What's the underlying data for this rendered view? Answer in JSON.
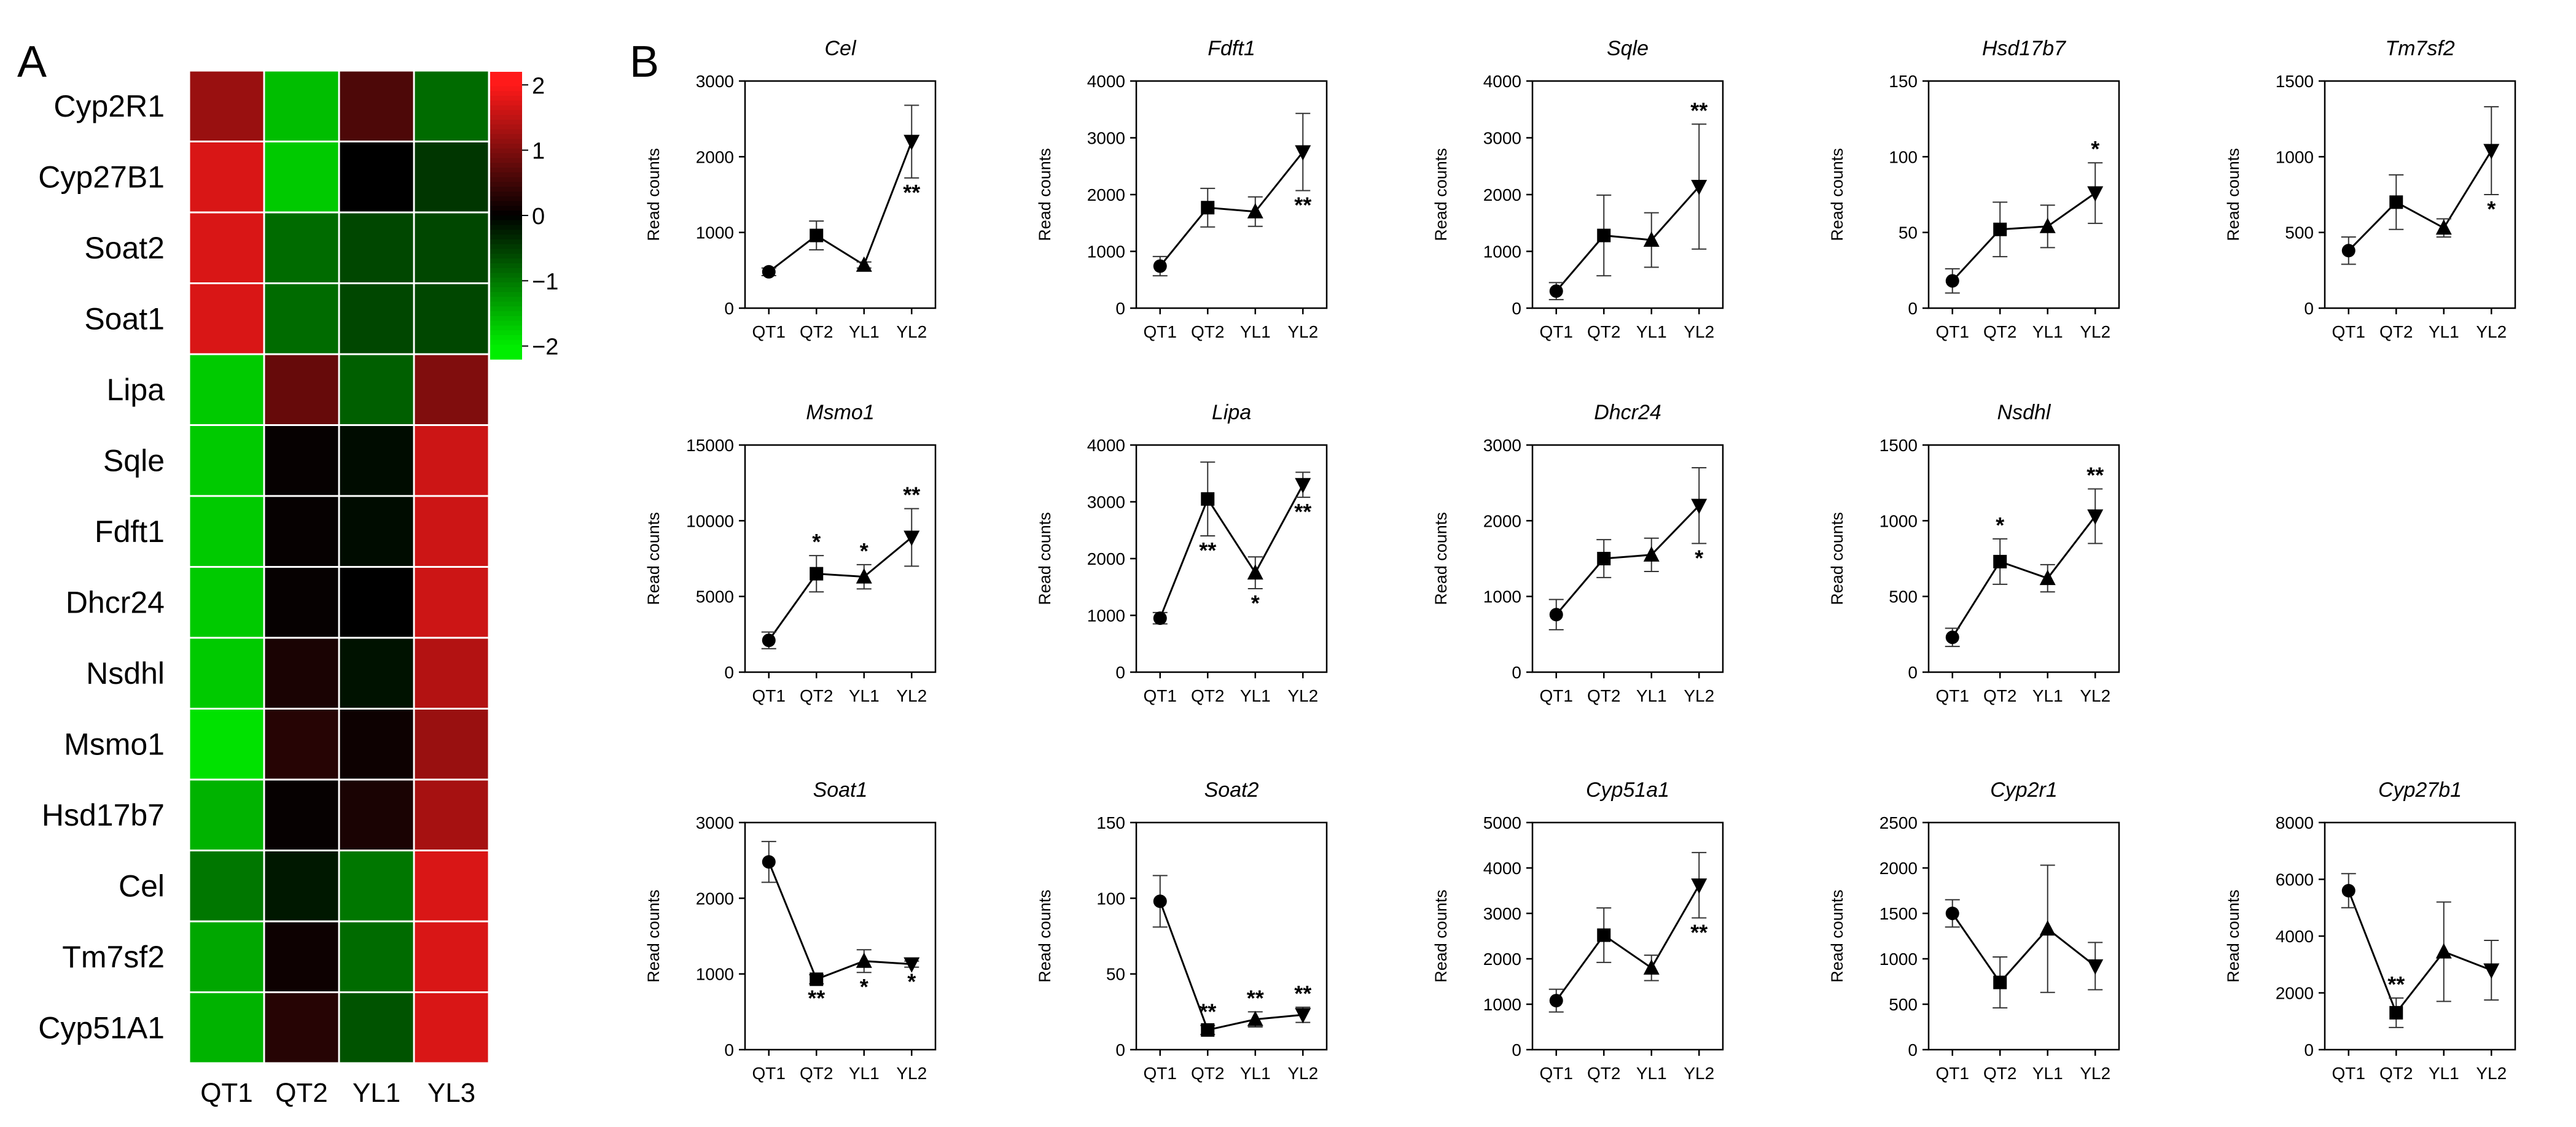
{
  "panels": {
    "a_label": "A",
    "b_label": "B"
  },
  "colors": {
    "high": "#ff1a1a",
    "mid": "#000000",
    "low": "#00ee00",
    "line": "#000000"
  },
  "chart_data": [
    {
      "type": "heatmap",
      "panel": "A",
      "rows": [
        "Cyp2R1",
        "Cyp27B1",
        "Soat2",
        "Soat1",
        "Lipa",
        "Sqle",
        "Fdft1",
        "Dhcr24",
        "Nsdhl",
        "Msmo1",
        "Hsd17b7",
        "Cel",
        "Tm7sf2",
        "Cyp51A1"
      ],
      "columns": [
        "QT1",
        "QT2",
        "YL1",
        "YL3"
      ],
      "values": [
        [
          1.2,
          -1.6,
          0.6,
          -0.9
        ],
        [
          1.7,
          -1.7,
          0.0,
          -0.45
        ],
        [
          1.7,
          -0.9,
          -0.6,
          -0.6
        ],
        [
          1.7,
          -0.9,
          -0.6,
          -0.6
        ],
        [
          -1.7,
          0.8,
          -0.8,
          1.0
        ],
        [
          -1.7,
          0.05,
          -0.1,
          1.6
        ],
        [
          -1.7,
          0.05,
          -0.1,
          1.6
        ],
        [
          -1.7,
          0.05,
          0.0,
          1.6
        ],
        [
          -1.7,
          0.2,
          -0.15,
          1.4
        ],
        [
          -1.9,
          0.3,
          0.1,
          1.2
        ],
        [
          -1.5,
          0.05,
          0.2,
          1.3
        ],
        [
          -1.0,
          -0.2,
          -1.0,
          1.7
        ],
        [
          -1.4,
          0.1,
          -0.9,
          1.7
        ],
        [
          -1.5,
          0.3,
          -0.7,
          1.7
        ]
      ],
      "colorbar": {
        "ticks": [
          "2",
          "1",
          "0",
          "−1",
          "−2"
        ],
        "values": [
          2,
          1,
          0,
          -1,
          -2
        ],
        "range": [
          -2.2,
          2.2
        ]
      }
    },
    {
      "type": "line",
      "panel": "B",
      "title": "Cel",
      "categories": [
        "QT1",
        "QT2",
        "YL1",
        "YL2"
      ],
      "values": [
        480,
        960,
        570,
        2200
      ],
      "errors": [
        50,
        190,
        40,
        480
      ],
      "annotations": [
        "",
        "",
        "",
        "**"
      ],
      "annotation_pos": [
        "",
        "",
        "",
        "below"
      ],
      "ylim": [
        0,
        3000
      ],
      "yticks": [
        "0",
        "1000",
        "2000",
        "3000"
      ],
      "ylabel": "Read counts",
      "markers": [
        "circle",
        "square",
        "triangle-up",
        "triangle-down"
      ]
    },
    {
      "type": "line",
      "panel": "B",
      "title": "Fdft1",
      "categories": [
        "QT1",
        "QT2",
        "YL1",
        "YL2"
      ],
      "values": [
        740,
        1770,
        1700,
        2750
      ],
      "errors": [
        170,
        340,
        260,
        680
      ],
      "annotations": [
        "",
        "",
        "",
        "**"
      ],
      "annotation_pos": [
        "",
        "",
        "",
        "below"
      ],
      "ylim": [
        0,
        4000
      ],
      "yticks": [
        "0",
        "1000",
        "2000",
        "3000",
        "4000"
      ],
      "ylabel": "Read counts",
      "markers": [
        "circle",
        "square",
        "triangle-up",
        "triangle-down"
      ]
    },
    {
      "type": "line",
      "panel": "B",
      "title": "Sqle",
      "categories": [
        "QT1",
        "QT2",
        "YL1",
        "YL2"
      ],
      "values": [
        300,
        1280,
        1200,
        2140
      ],
      "errors": [
        150,
        710,
        480,
        1100
      ],
      "annotations": [
        "",
        "",
        "",
        "**"
      ],
      "annotation_pos": [
        "",
        "",
        "",
        "above"
      ],
      "ylim": [
        0,
        4000
      ],
      "yticks": [
        "0",
        "1000",
        "2000",
        "3000",
        "4000"
      ],
      "ylabel": "Read counts",
      "markers": [
        "circle",
        "square",
        "triangle-up",
        "triangle-down"
      ]
    },
    {
      "type": "line",
      "panel": "B",
      "title": "Hsd17b7",
      "categories": [
        "QT1",
        "QT2",
        "YL1",
        "YL2"
      ],
      "values": [
        18,
        52,
        54,
        76
      ],
      "errors": [
        8,
        18,
        14,
        20
      ],
      "annotations": [
        "",
        "",
        "",
        "*"
      ],
      "annotation_pos": [
        "",
        "",
        "",
        "above"
      ],
      "ylim": [
        0,
        150
      ],
      "yticks": [
        "0",
        "50",
        "100",
        "150"
      ],
      "ylabel": "Read counts",
      "markers": [
        "circle",
        "square",
        "triangle-up",
        "triangle-down"
      ]
    },
    {
      "type": "line",
      "panel": "B",
      "title": "Tm7sf2",
      "categories": [
        "QT1",
        "QT2",
        "YL1",
        "YL2"
      ],
      "values": [
        380,
        700,
        530,
        1040
      ],
      "errors": [
        90,
        180,
        60,
        290
      ],
      "annotations": [
        "",
        "",
        "",
        "*"
      ],
      "annotation_pos": [
        "",
        "",
        "",
        "below"
      ],
      "ylim": [
        0,
        1500
      ],
      "yticks": [
        "0",
        "500",
        "1000",
        "1500"
      ],
      "ylabel": "Read counts",
      "markers": [
        "circle",
        "square",
        "triangle-up",
        "triangle-down"
      ]
    },
    {
      "type": "line",
      "panel": "B",
      "title": "Msmo1",
      "categories": [
        "QT1",
        "QT2",
        "YL1",
        "YL2"
      ],
      "values": [
        2100,
        6500,
        6300,
        8900
      ],
      "errors": [
        550,
        1200,
        800,
        1900
      ],
      "annotations": [
        "",
        "*",
        "*",
        "**"
      ],
      "annotation_pos": [
        "",
        "above",
        "above",
        "above"
      ],
      "ylim": [
        0,
        15000
      ],
      "yticks": [
        "0",
        "5000",
        "10000",
        "15000"
      ],
      "ylabel": "Read counts",
      "markers": [
        "circle",
        "square",
        "triangle-up",
        "triangle-down"
      ]
    },
    {
      "type": "line",
      "panel": "B",
      "title": "Lipa",
      "categories": [
        "QT1",
        "QT2",
        "YL1",
        "YL2"
      ],
      "values": [
        950,
        3050,
        1750,
        3300
      ],
      "errors": [
        100,
        650,
        280,
        220
      ],
      "annotations": [
        "",
        "**",
        "*",
        "**"
      ],
      "annotation_pos": [
        "",
        "below",
        "below",
        "below"
      ],
      "ylim": [
        0,
        4000
      ],
      "yticks": [
        "0",
        "1000",
        "2000",
        "3000",
        "4000"
      ],
      "ylabel": "Read counts",
      "markers": [
        "circle",
        "square",
        "triangle-up",
        "triangle-down"
      ]
    },
    {
      "type": "line",
      "panel": "B",
      "title": "Dhcr24",
      "categories": [
        "QT1",
        "QT2",
        "YL1",
        "YL2"
      ],
      "values": [
        760,
        1500,
        1550,
        2200
      ],
      "errors": [
        200,
        250,
        220,
        500
      ],
      "annotations": [
        "",
        "",
        "",
        "*"
      ],
      "annotation_pos": [
        "",
        "",
        "",
        "below"
      ],
      "ylim": [
        0,
        3000
      ],
      "yticks": [
        "0",
        "1000",
        "2000",
        "3000"
      ],
      "ylabel": "Read counts",
      "markers": [
        "circle",
        "square",
        "triangle-up",
        "triangle-down"
      ]
    },
    {
      "type": "line",
      "panel": "B",
      "title": "Nsdhl",
      "categories": [
        "QT1",
        "QT2",
        "YL1",
        "YL2"
      ],
      "values": [
        230,
        730,
        620,
        1030
      ],
      "errors": [
        60,
        150,
        90,
        180
      ],
      "annotations": [
        "",
        "*",
        "",
        "**"
      ],
      "annotation_pos": [
        "",
        "above",
        "",
        "above"
      ],
      "ylim": [
        0,
        1500
      ],
      "yticks": [
        "0",
        "500",
        "1000",
        "1500"
      ],
      "ylabel": "Read counts",
      "markers": [
        "circle",
        "square",
        "triangle-up",
        "triangle-down"
      ]
    },
    {
      "type": "line",
      "panel": "B",
      "title": "Soat1",
      "categories": [
        "QT1",
        "QT2",
        "YL1",
        "YL2"
      ],
      "values": [
        2480,
        930,
        1170,
        1130
      ],
      "errors": [
        270,
        60,
        150,
        40
      ],
      "annotations": [
        "",
        "**",
        "*",
        "*"
      ],
      "annotation_pos": [
        "",
        "below",
        "below",
        "below"
      ],
      "ylim": [
        0,
        3000
      ],
      "yticks": [
        "0",
        "1000",
        "2000",
        "3000"
      ],
      "ylabel": "Read counts",
      "markers": [
        "circle",
        "square",
        "triangle-up",
        "triangle-down"
      ]
    },
    {
      "type": "line",
      "panel": "B",
      "title": "Soat2",
      "categories": [
        "QT1",
        "QT2",
        "YL1",
        "YL2"
      ],
      "values": [
        98,
        13,
        20,
        23
      ],
      "errors": [
        17,
        3,
        5,
        5
      ],
      "annotations": [
        "",
        "**",
        "**",
        "**"
      ],
      "annotation_pos": [
        "",
        "above",
        "above",
        "above"
      ],
      "ylim": [
        0,
        150
      ],
      "yticks": [
        "0",
        "50",
        "100",
        "150"
      ],
      "ylabel": "Read counts",
      "markers": [
        "circle",
        "square",
        "triangle-up",
        "triangle-down"
      ]
    },
    {
      "type": "line",
      "panel": "B",
      "title": "Cyp51a1",
      "categories": [
        "QT1",
        "QT2",
        "YL1",
        "YL2"
      ],
      "values": [
        1080,
        2520,
        1800,
        3620
      ],
      "errors": [
        250,
        600,
        280,
        720
      ],
      "annotations": [
        "",
        "",
        "",
        "**"
      ],
      "annotation_pos": [
        "",
        "",
        "",
        "below"
      ],
      "ylim": [
        0,
        5000
      ],
      "yticks": [
        "0",
        "1000",
        "2000",
        "3000",
        "4000",
        "5000"
      ],
      "ylabel": "Read counts",
      "markers": [
        "circle",
        "square",
        "triangle-up",
        "triangle-down"
      ]
    },
    {
      "type": "line",
      "panel": "B",
      "title": "Cyp2r1",
      "categories": [
        "QT1",
        "QT2",
        "YL1",
        "YL2"
      ],
      "values": [
        1500,
        740,
        1330,
        920
      ],
      "errors": [
        150,
        280,
        700,
        260
      ],
      "annotations": [
        "",
        "",
        "",
        ""
      ],
      "annotation_pos": [
        "",
        "",
        "",
        ""
      ],
      "ylim": [
        0,
        2500
      ],
      "yticks": [
        "0",
        "500",
        "1000",
        "1500",
        "2000",
        "2500"
      ],
      "ylabel": "Read counts",
      "markers": [
        "circle",
        "square",
        "triangle-up",
        "triangle-down"
      ]
    },
    {
      "type": "line",
      "panel": "B",
      "title": "Cyp27b1",
      "categories": [
        "QT1",
        "QT2",
        "YL1",
        "YL2"
      ],
      "values": [
        5600,
        1300,
        3450,
        2800
      ],
      "errors": [
        600,
        520,
        1750,
        1050
      ],
      "annotations": [
        "",
        "**",
        "",
        ""
      ],
      "annotation_pos": [
        "",
        "above",
        "",
        ""
      ],
      "ylim": [
        0,
        8000
      ],
      "yticks": [
        "0",
        "2000",
        "4000",
        "6000",
        "8000"
      ],
      "ylabel": "Read counts",
      "markers": [
        "circle",
        "square",
        "triangle-up",
        "triangle-down"
      ]
    }
  ]
}
